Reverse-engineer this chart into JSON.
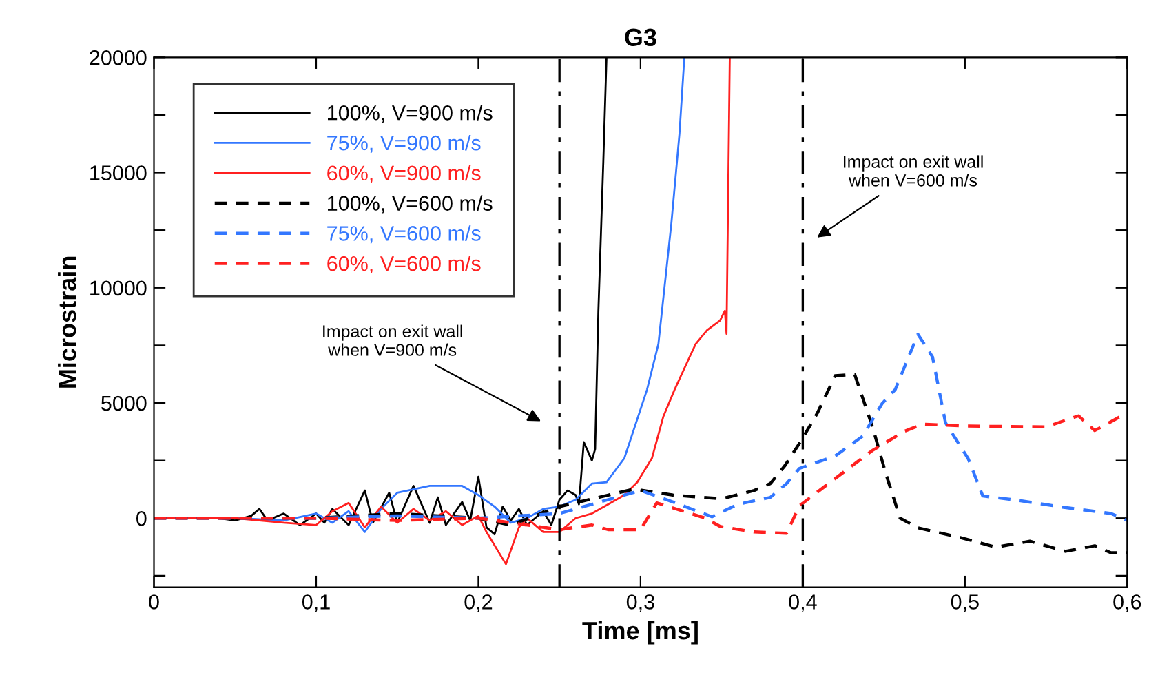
{
  "chart_data": {
    "type": "line",
    "title": "G3",
    "xlabel": "Time [ms]",
    "ylabel": "Microstrain",
    "xlim": [
      0,
      0.6
    ],
    "ylim": [
      -3000,
      20000
    ],
    "xticks": [
      0,
      {
        "value": 0.1,
        "label": "0,1"
      },
      {
        "value": 0.2,
        "label": "0,2"
      },
      {
        "value": 0.3,
        "label": "0,3"
      },
      {
        "value": 0.4,
        "label": "0,4"
      },
      {
        "value": 0.5,
        "label": "0,5"
      },
      {
        "value": 0.6,
        "label": "0,6"
      }
    ],
    "yticks": [
      {
        "value": -2500,
        "label": null
      },
      0,
      {
        "value": 2500,
        "label": null
      },
      5000,
      {
        "value": 7500,
        "label": null
      },
      10000,
      {
        "value": 12500,
        "label": null
      },
      15000,
      {
        "value": 17500,
        "label": null
      },
      20000
    ],
    "grid": false,
    "legend": "top left",
    "marker": "none",
    "ref_lines": [
      {
        "axis": "x",
        "value": 0.25,
        "color": "#000000",
        "line_style": "dashdot"
      },
      {
        "axis": "x",
        "value": 0.4,
        "color": "#000000",
        "line_style": "dashdot"
      }
    ],
    "annotations": [
      "Impact on exit wall\nwhen V=900 m/s",
      "Impact on exit wall\nwhen V=600 m/s"
    ],
    "series": [
      {
        "name": "100%, V=900 m/s",
        "color": "#000000",
        "line_style": "solid",
        "x": [
          0,
          0.04,
          0.05,
          0.06,
          0.065,
          0.07,
          0.08,
          0.09,
          0.1,
          0.105,
          0.11,
          0.12,
          0.13,
          0.135,
          0.145,
          0.15,
          0.16,
          0.17,
          0.175,
          0.18,
          0.19,
          0.195,
          0.2,
          0.205,
          0.21,
          0.215,
          0.22,
          0.225,
          0.23,
          0.24,
          0.245,
          0.25,
          0.255,
          0.26,
          0.262,
          0.265,
          0.27,
          0.272,
          0.274,
          0.277,
          0.279
        ],
        "values": [
          0,
          0,
          -100,
          100,
          400,
          -100,
          200,
          -300,
          200,
          -200,
          400,
          -300,
          1200,
          -200,
          1100,
          -200,
          1400,
          -200,
          900,
          -300,
          700,
          -100,
          1800,
          -400,
          -700,
          500,
          -100,
          400,
          -300,
          300,
          -300,
          800,
          1200,
          1000,
          600,
          3300,
          2500,
          3000,
          9000,
          15400,
          20000
        ]
      },
      {
        "name": "75%, V=900 m/s",
        "color": "#3377ff",
        "line_style": "solid",
        "x": [
          0,
          0.05,
          0.08,
          0.1,
          0.11,
          0.12,
          0.13,
          0.14,
          0.15,
          0.17,
          0.19,
          0.2,
          0.21,
          0.22,
          0.23,
          0.24,
          0.25,
          0.26,
          0.27,
          0.279,
          0.29,
          0.304,
          0.311,
          0.319,
          0.324,
          0.327
        ],
        "values": [
          0,
          0,
          -100,
          200,
          -200,
          300,
          -600,
          400,
          1100,
          1400,
          1400,
          1000,
          500,
          -200,
          0,
          400,
          500,
          800,
          1500,
          1560,
          2600,
          5580,
          7560,
          12800,
          16700,
          20000
        ]
      },
      {
        "name": "60%, V=900 m/s",
        "color": "#ff2020",
        "line_style": "solid",
        "x": [
          0,
          0.05,
          0.08,
          0.1,
          0.11,
          0.12,
          0.13,
          0.14,
          0.15,
          0.16,
          0.17,
          0.18,
          0.19,
          0.2,
          0.205,
          0.217,
          0.225,
          0.23,
          0.24,
          0.25,
          0.26,
          0.27,
          0.28,
          0.29,
          0.298,
          0.307,
          0.314,
          0.321,
          0.33,
          0.334,
          0.341,
          0.349,
          0.352,
          0.353,
          0.355
        ],
        "values": [
          0,
          0,
          -200,
          -300,
          300,
          660,
          -400,
          500,
          -200,
          400,
          -100,
          300,
          -300,
          100,
          -600,
          -2000,
          -400,
          0,
          -600,
          -600,
          0,
          200,
          600,
          1000,
          1560,
          2600,
          4400,
          5580,
          6960,
          7560,
          8160,
          8580,
          9000,
          8000,
          20000
        ]
      },
      {
        "name": "100%, V=600 m/s",
        "color": "#000000",
        "line_style": "dashed",
        "x": [
          0,
          0.1,
          0.15,
          0.2,
          0.22,
          0.25,
          0.28,
          0.296,
          0.32,
          0.35,
          0.37,
          0.38,
          0.389,
          0.399,
          0.409,
          0.42,
          0.432,
          0.443,
          0.451,
          0.46,
          0.471,
          0.497,
          0.519,
          0.54,
          0.562,
          0.58,
          0.59,
          0.6
        ],
        "values": [
          0,
          0,
          200,
          0,
          -300,
          500,
          1000,
          1260,
          1000,
          840,
          1200,
          1500,
          2280,
          3360,
          4560,
          6180,
          6240,
          3960,
          1980,
          0,
          -420,
          -840,
          -1260,
          -1000,
          -1440,
          -1200,
          -1500,
          -1500
        ]
      },
      {
        "name": "75%, V=600 m/s",
        "color": "#3377ff",
        "line_style": "dashed",
        "x": [
          0,
          0.1,
          0.15,
          0.2,
          0.25,
          0.3,
          0.32,
          0.344,
          0.36,
          0.38,
          0.39,
          0.398,
          0.42,
          0.437,
          0.449,
          0.457,
          0.471,
          0.48,
          0.488,
          0.502,
          0.511,
          0.53,
          0.56,
          0.59,
          0.6
        ],
        "values": [
          0,
          0,
          100,
          0,
          200,
          1200,
          700,
          60,
          600,
          900,
          1500,
          2160,
          2700,
          3560,
          4980,
          5580,
          7980,
          7000,
          4140,
          2580,
          960,
          800,
          480,
          200,
          -100
        ]
      },
      {
        "name": "60%, V=600 m/s",
        "color": "#ff2020",
        "line_style": "dashed",
        "x": [
          0,
          0.1,
          0.15,
          0.2,
          0.22,
          0.25,
          0.27,
          0.28,
          0.3,
          0.31,
          0.34,
          0.349,
          0.37,
          0.39,
          0.398,
          0.417,
          0.443,
          0.463,
          0.474,
          0.5,
          0.55,
          0.57,
          0.58,
          0.595,
          0.6
        ],
        "values": [
          0,
          0,
          -100,
          0,
          -200,
          -500,
          -300,
          -500,
          -500,
          660,
          0,
          -360,
          -600,
          -660,
          540,
          1560,
          2940,
          3780,
          4080,
          4000,
          3960,
          4440,
          3800,
          4380,
          4400
        ]
      }
    ]
  }
}
